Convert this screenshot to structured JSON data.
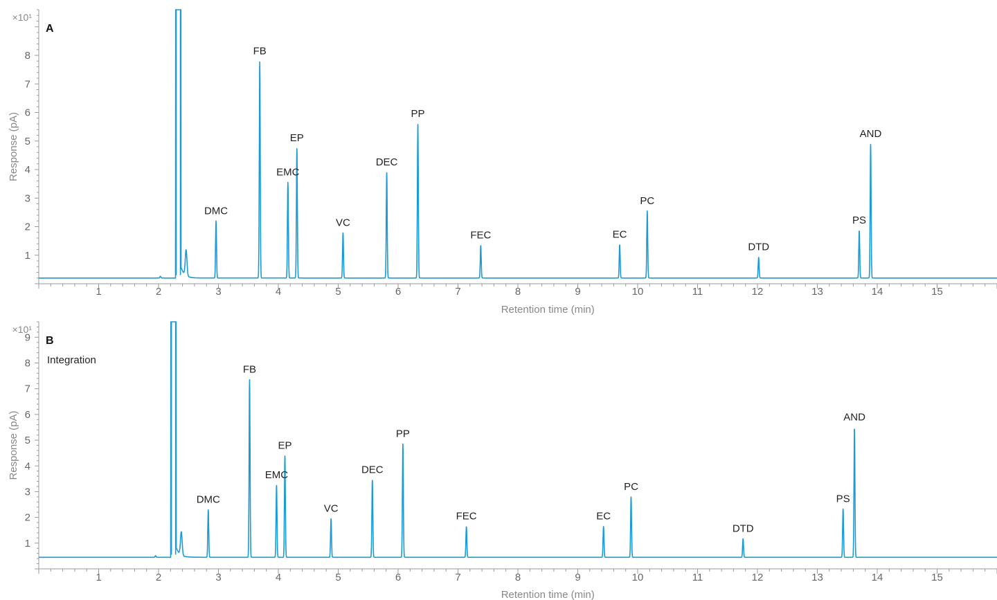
{
  "colors": {
    "trace": "#1a9bd7",
    "axis": "#999999",
    "text": "#222222",
    "tick_text": "#666666"
  },
  "chart_data": [
    {
      "type": "line",
      "panel_label": "A",
      "annotation": "",
      "xlabel": "Retention time (min)",
      "ylabel": "Response (pA)",
      "y_multiplier": "×10¹",
      "xlim": [
        0,
        16
      ],
      "ylim": [
        0,
        9.6
      ],
      "xticks": [
        1,
        2,
        3,
        4,
        5,
        6,
        7,
        8,
        9,
        10,
        11,
        12,
        13,
        14,
        15
      ],
      "yticks": [
        1,
        2,
        3,
        4,
        5,
        6,
        7,
        8
      ],
      "baseline": 0.2,
      "solvent_peak": {
        "x": 2.33,
        "y": 9.6
      },
      "peaks": [
        {
          "name": "DMC",
          "x": 2.96,
          "y": 2.2
        },
        {
          "name": "FB",
          "x": 3.69,
          "y": 7.8
        },
        {
          "name": "EMC",
          "x": 4.16,
          "y": 3.55
        },
        {
          "name": "EP",
          "x": 4.31,
          "y": 4.75
        },
        {
          "name": "VC",
          "x": 5.08,
          "y": 1.78
        },
        {
          "name": "DEC",
          "x": 5.81,
          "y": 3.9
        },
        {
          "name": "PP",
          "x": 6.33,
          "y": 5.6
        },
        {
          "name": "FEC",
          "x": 7.38,
          "y": 1.35
        },
        {
          "name": "EC",
          "x": 9.7,
          "y": 1.37
        },
        {
          "name": "PC",
          "x": 10.16,
          "y": 2.55
        },
        {
          "name": "DTD",
          "x": 12.02,
          "y": 0.93
        },
        {
          "name": "PS",
          "x": 13.7,
          "y": 1.87
        },
        {
          "name": "AND",
          "x": 13.89,
          "y": 4.9
        }
      ]
    },
    {
      "type": "line",
      "panel_label": "B",
      "annotation": "Integration",
      "xlabel": "Retention time (min)",
      "ylabel": "Response (pA)",
      "y_multiplier": "×10¹",
      "xlim": [
        0,
        16
      ],
      "ylim": [
        0,
        9.6
      ],
      "xticks": [
        1,
        2,
        3,
        4,
        5,
        6,
        7,
        8,
        9,
        10,
        11,
        12,
        13,
        14,
        15
      ],
      "yticks": [
        1,
        2,
        3,
        4,
        5,
        6,
        7,
        8,
        9
      ],
      "baseline": 0.45,
      "solvent_peak": {
        "x": 2.25,
        "y": 9.6
      },
      "peaks": [
        {
          "name": "DMC",
          "x": 2.83,
          "y": 2.3
        },
        {
          "name": "FB",
          "x": 3.52,
          "y": 7.35
        },
        {
          "name": "EMC",
          "x": 3.97,
          "y": 3.25
        },
        {
          "name": "EP",
          "x": 4.11,
          "y": 4.4
        },
        {
          "name": "VC",
          "x": 4.88,
          "y": 1.95
        },
        {
          "name": "DEC",
          "x": 5.57,
          "y": 3.45
        },
        {
          "name": "PP",
          "x": 6.08,
          "y": 4.85
        },
        {
          "name": "FEC",
          "x": 7.14,
          "y": 1.65
        },
        {
          "name": "EC",
          "x": 9.43,
          "y": 1.65
        },
        {
          "name": "PC",
          "x": 9.89,
          "y": 2.8
        },
        {
          "name": "DTD",
          "x": 11.76,
          "y": 1.17
        },
        {
          "name": "PS",
          "x": 13.43,
          "y": 2.33
        },
        {
          "name": "AND",
          "x": 13.62,
          "y": 5.5
        }
      ]
    }
  ]
}
